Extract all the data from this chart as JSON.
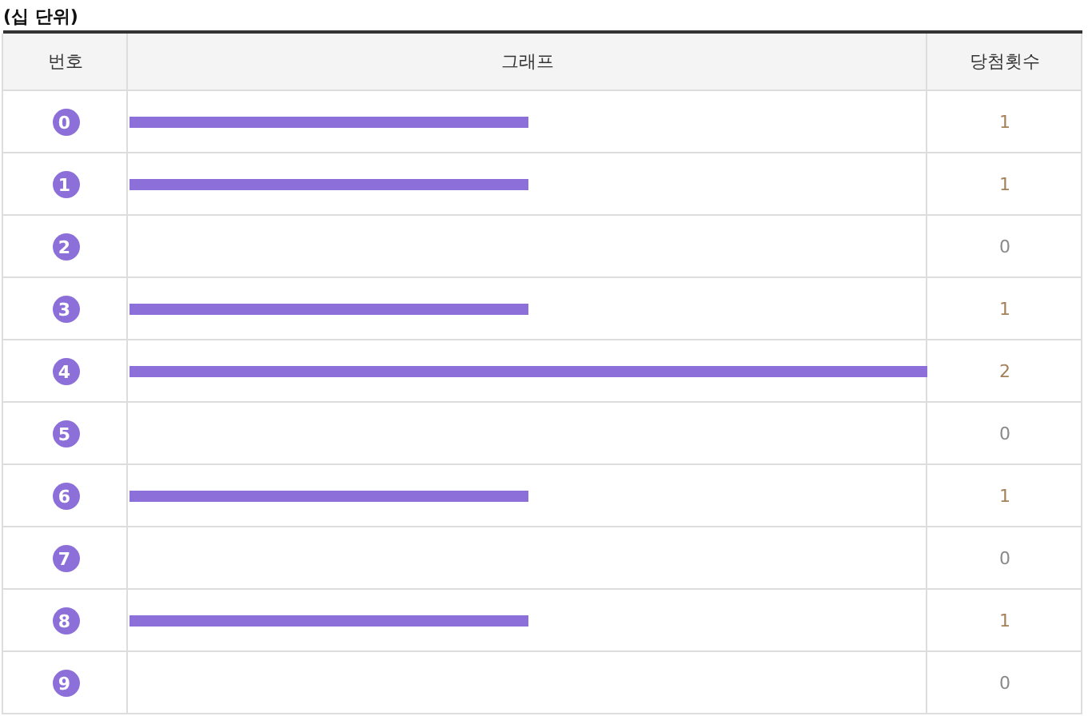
{
  "chart_data": {
    "type": "bar",
    "orientation": "horizontal",
    "title": "(십 단위)",
    "xlabel": "그래프",
    "ylabel": "번호",
    "annotations": [
      "당첨횟수"
    ],
    "categories": [
      "0",
      "1",
      "2",
      "3",
      "4",
      "5",
      "6",
      "7",
      "8",
      "9"
    ],
    "values": [
      1,
      1,
      0,
      1,
      2,
      0,
      1,
      0,
      1,
      0
    ],
    "color": "#8c6fd8",
    "xlim": [
      0,
      2
    ],
    "data_labels": true,
    "tick_labels": "y"
  }
}
